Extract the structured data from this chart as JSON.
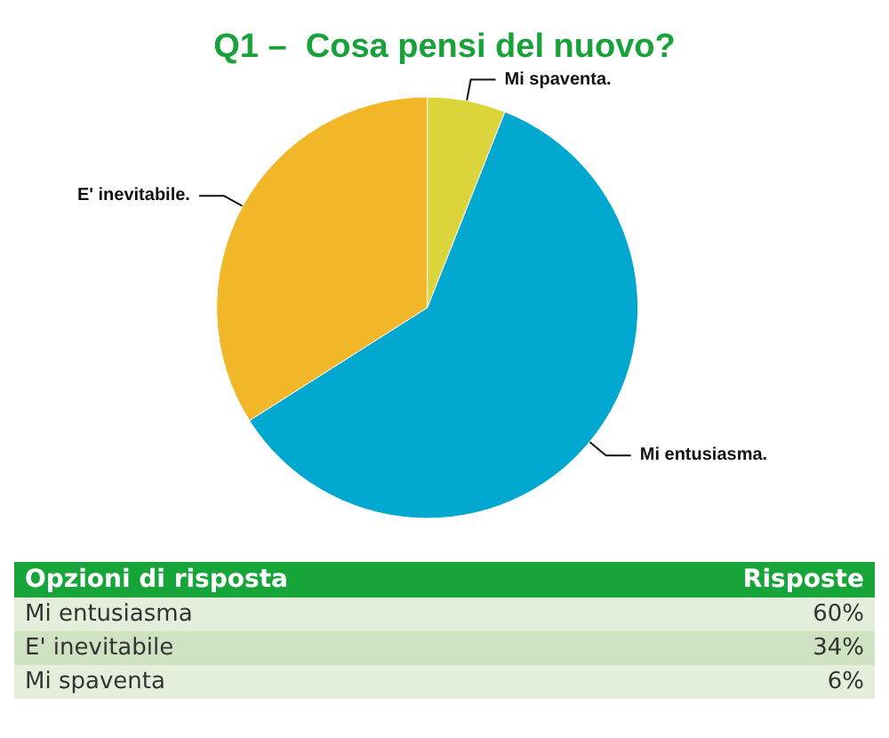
{
  "chart_data": [
    {
      "type": "pie",
      "title": "Q1 –  Cosa pensi del nuovo?",
      "categories": [
        "Mi entusiasma.",
        "E' inevitabile.",
        "Mi spaventa."
      ],
      "values": [
        60,
        34,
        6
      ],
      "colors": [
        "#00a7cf",
        "#f2b729",
        "#dcd43b"
      ]
    },
    {
      "type": "other",
      "annotations": [
        "Opzioni di risposta",
        "Risposte",
        "Mi entusiasma",
        "60%",
        "E' inevitabile",
        "34%",
        "Mi spaventa",
        "6%"
      ]
    }
  ]
}
